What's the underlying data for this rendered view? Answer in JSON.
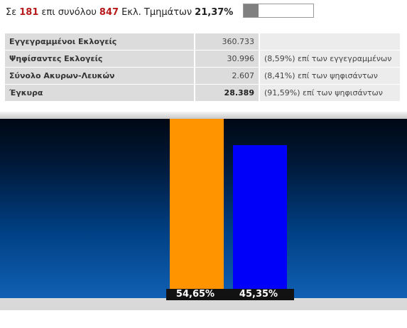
{
  "progress": {
    "prefix": "Σε",
    "counted": "181",
    "middle": "επι συνόλου",
    "total": "847",
    "suffix": "Εκλ. Τμημάτων",
    "percent": "21,37%",
    "fill_fraction": 0.2137,
    "fill_color": "#808080"
  },
  "stats": [
    {
      "label": "Εγγεγραμμένοι Εκλογείς",
      "value": "360.733",
      "note": ""
    },
    {
      "label": "Ψηφίσαντες Εκλογείς",
      "value": "30.996",
      "note": "(8,59%) επί των εγγεγραμμένων"
    },
    {
      "label": "Σύνολο Ακυρων-Λευκών",
      "value": "2.607",
      "note": "(8,41%) επί των ψηφισάντων"
    },
    {
      "label": "Έγκυρα",
      "value": "28.389",
      "note": "(91,59%) επί των ψηφισάντων"
    }
  ],
  "chart_data": {
    "type": "bar",
    "categories": [
      "",
      ""
    ],
    "values": [
      54.65,
      45.35
    ],
    "value_labels": [
      "54,65%",
      "45,35%"
    ],
    "colors": [
      "#ff9400",
      "#0000fa"
    ],
    "ylim": [
      0,
      60
    ],
    "title": "",
    "xlabel": "",
    "ylabel": ""
  }
}
